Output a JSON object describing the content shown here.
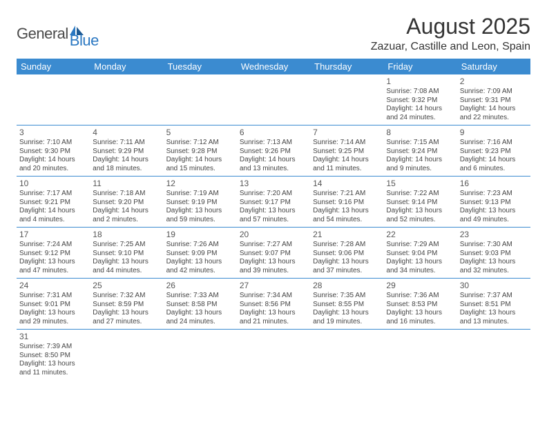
{
  "logo": {
    "general": "General",
    "blue": "Blue"
  },
  "title": "August 2025",
  "location": "Zazuar, Castille and Leon, Spain",
  "headers": [
    "Sunday",
    "Monday",
    "Tuesday",
    "Wednesday",
    "Thursday",
    "Friday",
    "Saturday"
  ],
  "colors": {
    "header_bg": "#3b8bd0",
    "header_fg": "#ffffff",
    "rule": "#3b8bd0"
  },
  "weeks": [
    [
      null,
      null,
      null,
      null,
      null,
      {
        "n": "1",
        "sr": "Sunrise: 7:08 AM",
        "ss": "Sunset: 9:32 PM",
        "d1": "Daylight: 14 hours",
        "d2": "and 24 minutes."
      },
      {
        "n": "2",
        "sr": "Sunrise: 7:09 AM",
        "ss": "Sunset: 9:31 PM",
        "d1": "Daylight: 14 hours",
        "d2": "and 22 minutes."
      }
    ],
    [
      {
        "n": "3",
        "sr": "Sunrise: 7:10 AM",
        "ss": "Sunset: 9:30 PM",
        "d1": "Daylight: 14 hours",
        "d2": "and 20 minutes."
      },
      {
        "n": "4",
        "sr": "Sunrise: 7:11 AM",
        "ss": "Sunset: 9:29 PM",
        "d1": "Daylight: 14 hours",
        "d2": "and 18 minutes."
      },
      {
        "n": "5",
        "sr": "Sunrise: 7:12 AM",
        "ss": "Sunset: 9:28 PM",
        "d1": "Daylight: 14 hours",
        "d2": "and 15 minutes."
      },
      {
        "n": "6",
        "sr": "Sunrise: 7:13 AM",
        "ss": "Sunset: 9:26 PM",
        "d1": "Daylight: 14 hours",
        "d2": "and 13 minutes."
      },
      {
        "n": "7",
        "sr": "Sunrise: 7:14 AM",
        "ss": "Sunset: 9:25 PM",
        "d1": "Daylight: 14 hours",
        "d2": "and 11 minutes."
      },
      {
        "n": "8",
        "sr": "Sunrise: 7:15 AM",
        "ss": "Sunset: 9:24 PM",
        "d1": "Daylight: 14 hours",
        "d2": "and 9 minutes."
      },
      {
        "n": "9",
        "sr": "Sunrise: 7:16 AM",
        "ss": "Sunset: 9:23 PM",
        "d1": "Daylight: 14 hours",
        "d2": "and 6 minutes."
      }
    ],
    [
      {
        "n": "10",
        "sr": "Sunrise: 7:17 AM",
        "ss": "Sunset: 9:21 PM",
        "d1": "Daylight: 14 hours",
        "d2": "and 4 minutes."
      },
      {
        "n": "11",
        "sr": "Sunrise: 7:18 AM",
        "ss": "Sunset: 9:20 PM",
        "d1": "Daylight: 14 hours",
        "d2": "and 2 minutes."
      },
      {
        "n": "12",
        "sr": "Sunrise: 7:19 AM",
        "ss": "Sunset: 9:19 PM",
        "d1": "Daylight: 13 hours",
        "d2": "and 59 minutes."
      },
      {
        "n": "13",
        "sr": "Sunrise: 7:20 AM",
        "ss": "Sunset: 9:17 PM",
        "d1": "Daylight: 13 hours",
        "d2": "and 57 minutes."
      },
      {
        "n": "14",
        "sr": "Sunrise: 7:21 AM",
        "ss": "Sunset: 9:16 PM",
        "d1": "Daylight: 13 hours",
        "d2": "and 54 minutes."
      },
      {
        "n": "15",
        "sr": "Sunrise: 7:22 AM",
        "ss": "Sunset: 9:14 PM",
        "d1": "Daylight: 13 hours",
        "d2": "and 52 minutes."
      },
      {
        "n": "16",
        "sr": "Sunrise: 7:23 AM",
        "ss": "Sunset: 9:13 PM",
        "d1": "Daylight: 13 hours",
        "d2": "and 49 minutes."
      }
    ],
    [
      {
        "n": "17",
        "sr": "Sunrise: 7:24 AM",
        "ss": "Sunset: 9:12 PM",
        "d1": "Daylight: 13 hours",
        "d2": "and 47 minutes."
      },
      {
        "n": "18",
        "sr": "Sunrise: 7:25 AM",
        "ss": "Sunset: 9:10 PM",
        "d1": "Daylight: 13 hours",
        "d2": "and 44 minutes."
      },
      {
        "n": "19",
        "sr": "Sunrise: 7:26 AM",
        "ss": "Sunset: 9:09 PM",
        "d1": "Daylight: 13 hours",
        "d2": "and 42 minutes."
      },
      {
        "n": "20",
        "sr": "Sunrise: 7:27 AM",
        "ss": "Sunset: 9:07 PM",
        "d1": "Daylight: 13 hours",
        "d2": "and 39 minutes."
      },
      {
        "n": "21",
        "sr": "Sunrise: 7:28 AM",
        "ss": "Sunset: 9:06 PM",
        "d1": "Daylight: 13 hours",
        "d2": "and 37 minutes."
      },
      {
        "n": "22",
        "sr": "Sunrise: 7:29 AM",
        "ss": "Sunset: 9:04 PM",
        "d1": "Daylight: 13 hours",
        "d2": "and 34 minutes."
      },
      {
        "n": "23",
        "sr": "Sunrise: 7:30 AM",
        "ss": "Sunset: 9:03 PM",
        "d1": "Daylight: 13 hours",
        "d2": "and 32 minutes."
      }
    ],
    [
      {
        "n": "24",
        "sr": "Sunrise: 7:31 AM",
        "ss": "Sunset: 9:01 PM",
        "d1": "Daylight: 13 hours",
        "d2": "and 29 minutes."
      },
      {
        "n": "25",
        "sr": "Sunrise: 7:32 AM",
        "ss": "Sunset: 8:59 PM",
        "d1": "Daylight: 13 hours",
        "d2": "and 27 minutes."
      },
      {
        "n": "26",
        "sr": "Sunrise: 7:33 AM",
        "ss": "Sunset: 8:58 PM",
        "d1": "Daylight: 13 hours",
        "d2": "and 24 minutes."
      },
      {
        "n": "27",
        "sr": "Sunrise: 7:34 AM",
        "ss": "Sunset: 8:56 PM",
        "d1": "Daylight: 13 hours",
        "d2": "and 21 minutes."
      },
      {
        "n": "28",
        "sr": "Sunrise: 7:35 AM",
        "ss": "Sunset: 8:55 PM",
        "d1": "Daylight: 13 hours",
        "d2": "and 19 minutes."
      },
      {
        "n": "29",
        "sr": "Sunrise: 7:36 AM",
        "ss": "Sunset: 8:53 PM",
        "d1": "Daylight: 13 hours",
        "d2": "and 16 minutes."
      },
      {
        "n": "30",
        "sr": "Sunrise: 7:37 AM",
        "ss": "Sunset: 8:51 PM",
        "d1": "Daylight: 13 hours",
        "d2": "and 13 minutes."
      }
    ],
    [
      {
        "n": "31",
        "sr": "Sunrise: 7:39 AM",
        "ss": "Sunset: 8:50 PM",
        "d1": "Daylight: 13 hours",
        "d2": "and 11 minutes."
      },
      null,
      null,
      null,
      null,
      null,
      null
    ]
  ]
}
